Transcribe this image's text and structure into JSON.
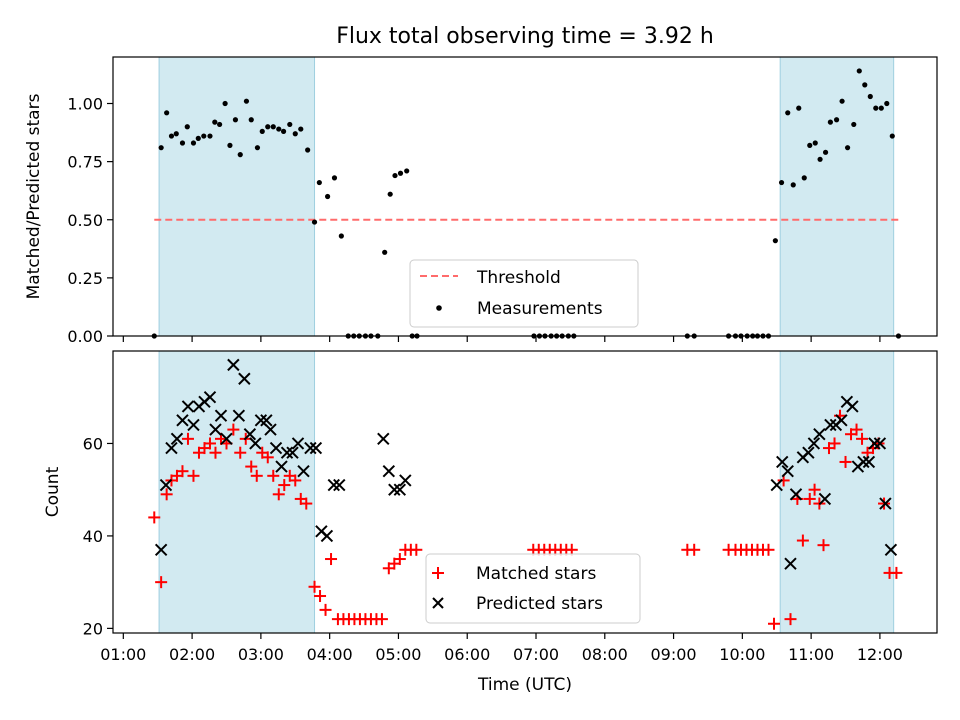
{
  "figure": {
    "title": "Flux total observing time = 3.92 h",
    "xlabel": "Time (UTC)",
    "x_tick_labels": [
      "01:00",
      "02:00",
      "03:00",
      "04:00",
      "05:00",
      "06:00",
      "07:00",
      "08:00",
      "09:00",
      "10:00",
      "11:00",
      "12:00"
    ]
  },
  "chart_data": [
    {
      "type": "scatter",
      "panel": "top",
      "title": "Flux total observing time = 3.92 h",
      "xlabel": "",
      "ylabel": "Matched/Predicted stars",
      "x_unit": "hours UTC",
      "xlim": [
        0.85,
        12.83
      ],
      "ylim": [
        0,
        1.2
      ],
      "yticks": [
        0.0,
        0.25,
        0.5,
        0.75,
        1.0
      ],
      "ytick_labels": [
        "0.00",
        "0.25",
        "0.50",
        "0.75",
        "1.00"
      ],
      "grid": false,
      "legend": {
        "placement": "lower-center",
        "entries": [
          "Threshold",
          "Measurements"
        ]
      },
      "shaded_intervals": [
        [
          1.52,
          3.78
        ],
        [
          10.55,
          12.2
        ]
      ],
      "shade_color": "#add8e6",
      "threshold": {
        "name": "Threshold",
        "value": 0.5,
        "x_range": [
          1.45,
          12.28
        ],
        "color": "#ff6b6b"
      },
      "series": [
        {
          "name": "Measurements",
          "color": "#000000",
          "points": [
            [
              1.45,
              0.0
            ],
            [
              1.55,
              0.81
            ],
            [
              1.63,
              0.96
            ],
            [
              1.7,
              0.86
            ],
            [
              1.77,
              0.87
            ],
            [
              1.86,
              0.83
            ],
            [
              1.93,
              0.9
            ],
            [
              2.02,
              0.83
            ],
            [
              2.09,
              0.85
            ],
            [
              2.17,
              0.86
            ],
            [
              2.26,
              0.86
            ],
            [
              2.33,
              0.92
            ],
            [
              2.4,
              0.91
            ],
            [
              2.48,
              1.0
            ],
            [
              2.55,
              0.82
            ],
            [
              2.63,
              0.93
            ],
            [
              2.7,
              0.78
            ],
            [
              2.79,
              1.01
            ],
            [
              2.86,
              0.93
            ],
            [
              2.95,
              0.81
            ],
            [
              3.02,
              0.88
            ],
            [
              3.1,
              0.9
            ],
            [
              3.18,
              0.9
            ],
            [
              3.26,
              0.89
            ],
            [
              3.33,
              0.88
            ],
            [
              3.42,
              0.91
            ],
            [
              3.5,
              0.87
            ],
            [
              3.58,
              0.89
            ],
            [
              3.68,
              0.8
            ],
            [
              3.78,
              0.49
            ],
            [
              3.85,
              0.66
            ],
            [
              3.97,
              0.6
            ],
            [
              4.07,
              0.68
            ],
            [
              4.17,
              0.43
            ],
            [
              4.27,
              0.0
            ],
            [
              4.35,
              0.0
            ],
            [
              4.43,
              0.0
            ],
            [
              4.52,
              0.0
            ],
            [
              4.6,
              0.0
            ],
            [
              4.7,
              0.0
            ],
            [
              4.8,
              0.36
            ],
            [
              4.88,
              0.61
            ],
            [
              4.95,
              0.69
            ],
            [
              5.03,
              0.7
            ],
            [
              5.12,
              0.71
            ],
            [
              5.2,
              0.0
            ],
            [
              5.27,
              0.0
            ],
            [
              6.97,
              0.0
            ],
            [
              7.05,
              0.0
            ],
            [
              7.13,
              0.0
            ],
            [
              7.22,
              0.0
            ],
            [
              7.3,
              0.0
            ],
            [
              7.38,
              0.0
            ],
            [
              7.47,
              0.0
            ],
            [
              7.55,
              0.0
            ],
            [
              9.2,
              0.0
            ],
            [
              9.3,
              0.0
            ],
            [
              9.8,
              0.0
            ],
            [
              9.9,
              0.0
            ],
            [
              9.98,
              0.0
            ],
            [
              10.07,
              0.0
            ],
            [
              10.15,
              0.0
            ],
            [
              10.22,
              0.0
            ],
            [
              10.3,
              0.0
            ],
            [
              10.38,
              0.0
            ],
            [
              10.48,
              0.41
            ],
            [
              10.57,
              0.66
            ],
            [
              10.66,
              0.96
            ],
            [
              10.74,
              0.65
            ],
            [
              10.82,
              0.98
            ],
            [
              10.9,
              0.68
            ],
            [
              10.98,
              0.82
            ],
            [
              11.06,
              0.83
            ],
            [
              11.13,
              0.76
            ],
            [
              11.21,
              0.79
            ],
            [
              11.28,
              0.92
            ],
            [
              11.37,
              0.93
            ],
            [
              11.45,
              1.01
            ],
            [
              11.53,
              0.81
            ],
            [
              11.62,
              0.91
            ],
            [
              11.7,
              1.14
            ],
            [
              11.78,
              1.08
            ],
            [
              11.86,
              1.03
            ],
            [
              11.94,
              0.98
            ],
            [
              12.02,
              0.98
            ],
            [
              12.1,
              1.0
            ],
            [
              12.18,
              0.86
            ],
            [
              12.27,
              0.0
            ]
          ]
        }
      ]
    },
    {
      "type": "scatter",
      "panel": "bottom",
      "xlabel": "Time (UTC)",
      "ylabel": "Count",
      "x_unit": "hours UTC",
      "xlim": [
        0.85,
        12.83
      ],
      "ylim": [
        19,
        80
      ],
      "yticks": [
        20,
        40,
        60
      ],
      "ytick_labels": [
        "20",
        "40",
        "60"
      ],
      "grid": false,
      "legend": {
        "placement": "lower-center",
        "entries": [
          "Matched stars",
          "Predicted stars"
        ]
      },
      "shaded_intervals": [
        [
          1.52,
          3.78
        ],
        [
          10.55,
          12.2
        ]
      ],
      "shade_color": "#add8e6",
      "series": [
        {
          "name": "Matched stars",
          "color": "#ff0000",
          "marker": "+",
          "points": [
            [
              1.45,
              44
            ],
            [
              1.55,
              30
            ],
            [
              1.63,
              49
            ],
            [
              1.7,
              52
            ],
            [
              1.78,
              53
            ],
            [
              1.86,
              54
            ],
            [
              1.94,
              61
            ],
            [
              2.02,
              53
            ],
            [
              2.1,
              58
            ],
            [
              2.18,
              59
            ],
            [
              2.26,
              60
            ],
            [
              2.34,
              58
            ],
            [
              2.42,
              61
            ],
            [
              2.5,
              60
            ],
            [
              2.6,
              63
            ],
            [
              2.7,
              58
            ],
            [
              2.78,
              61
            ],
            [
              2.86,
              55
            ],
            [
              2.94,
              53
            ],
            [
              3.02,
              58
            ],
            [
              3.1,
              57
            ],
            [
              3.18,
              53
            ],
            [
              3.26,
              49
            ],
            [
              3.34,
              51
            ],
            [
              3.42,
              53
            ],
            [
              3.5,
              52
            ],
            [
              3.58,
              48
            ],
            [
              3.66,
              47
            ],
            [
              3.78,
              29
            ],
            [
              3.86,
              27
            ],
            [
              3.94,
              24
            ],
            [
              4.02,
              35
            ],
            [
              4.12,
              22
            ],
            [
              4.2,
              22
            ],
            [
              4.28,
              22
            ],
            [
              4.36,
              22
            ],
            [
              4.44,
              22
            ],
            [
              4.52,
              22
            ],
            [
              4.6,
              22
            ],
            [
              4.68,
              22
            ],
            [
              4.76,
              22
            ],
            [
              4.86,
              33
            ],
            [
              4.94,
              34
            ],
            [
              5.02,
              35
            ],
            [
              5.1,
              37
            ],
            [
              5.18,
              37
            ],
            [
              5.26,
              37
            ],
            [
              6.96,
              37
            ],
            [
              7.04,
              37
            ],
            [
              7.12,
              37
            ],
            [
              7.2,
              37
            ],
            [
              7.28,
              37
            ],
            [
              7.36,
              37
            ],
            [
              7.44,
              37
            ],
            [
              7.52,
              37
            ],
            [
              9.2,
              37
            ],
            [
              9.3,
              37
            ],
            [
              9.8,
              37
            ],
            [
              9.9,
              37
            ],
            [
              9.98,
              37
            ],
            [
              10.06,
              37
            ],
            [
              10.14,
              37
            ],
            [
              10.22,
              37
            ],
            [
              10.3,
              37
            ],
            [
              10.38,
              37
            ],
            [
              10.46,
              21
            ],
            [
              10.6,
              52
            ],
            [
              10.7,
              22
            ],
            [
              10.8,
              48
            ],
            [
              10.88,
              39
            ],
            [
              10.98,
              48
            ],
            [
              11.05,
              50
            ],
            [
              11.12,
              47
            ],
            [
              11.18,
              38
            ],
            [
              11.26,
              59
            ],
            [
              11.34,
              60
            ],
            [
              11.42,
              66
            ],
            [
              11.5,
              56
            ],
            [
              11.58,
              62
            ],
            [
              11.66,
              63
            ],
            [
              11.74,
              61
            ],
            [
              11.82,
              58
            ],
            [
              11.9,
              59
            ],
            [
              11.98,
              60
            ],
            [
              12.06,
              47
            ],
            [
              12.14,
              32
            ],
            [
              12.24,
              32
            ]
          ]
        },
        {
          "name": "Predicted stars",
          "color": "#000000",
          "marker": "x",
          "points": [
            [
              1.55,
              37
            ],
            [
              1.62,
              51
            ],
            [
              1.7,
              59
            ],
            [
              1.78,
              61
            ],
            [
              1.86,
              65
            ],
            [
              1.94,
              68
            ],
            [
              2.02,
              64
            ],
            [
              2.1,
              68
            ],
            [
              2.18,
              69
            ],
            [
              2.26,
              70
            ],
            [
              2.34,
              63
            ],
            [
              2.42,
              66
            ],
            [
              2.5,
              61
            ],
            [
              2.6,
              77
            ],
            [
              2.68,
              66
            ],
            [
              2.76,
              74
            ],
            [
              2.84,
              62
            ],
            [
              2.92,
              60
            ],
            [
              3.0,
              65
            ],
            [
              3.08,
              65
            ],
            [
              3.14,
              63
            ],
            [
              3.22,
              59
            ],
            [
              3.3,
              55
            ],
            [
              3.38,
              58
            ],
            [
              3.46,
              58
            ],
            [
              3.54,
              60
            ],
            [
              3.62,
              54
            ],
            [
              3.72,
              59
            ],
            [
              3.8,
              59
            ],
            [
              3.88,
              41
            ],
            [
              3.96,
              40
            ],
            [
              4.06,
              51
            ],
            [
              4.14,
              51
            ],
            [
              4.78,
              61
            ],
            [
              4.86,
              54
            ],
            [
              4.94,
              50
            ],
            [
              5.02,
              50
            ],
            [
              5.1,
              52
            ],
            [
              10.5,
              51
            ],
            [
              10.58,
              56
            ],
            [
              10.66,
              54
            ],
            [
              10.7,
              34
            ],
            [
              10.78,
              49
            ],
            [
              10.88,
              57
            ],
            [
              10.96,
              58
            ],
            [
              11.04,
              60
            ],
            [
              11.12,
              62
            ],
            [
              11.2,
              48
            ],
            [
              11.28,
              64
            ],
            [
              11.36,
              64
            ],
            [
              11.44,
              65
            ],
            [
              11.52,
              69
            ],
            [
              11.6,
              68
            ],
            [
              11.68,
              55
            ],
            [
              11.76,
              56
            ],
            [
              11.84,
              56
            ],
            [
              11.92,
              60
            ],
            [
              12.0,
              60
            ],
            [
              12.08,
              47
            ],
            [
              12.16,
              37
            ]
          ]
        }
      ]
    }
  ]
}
